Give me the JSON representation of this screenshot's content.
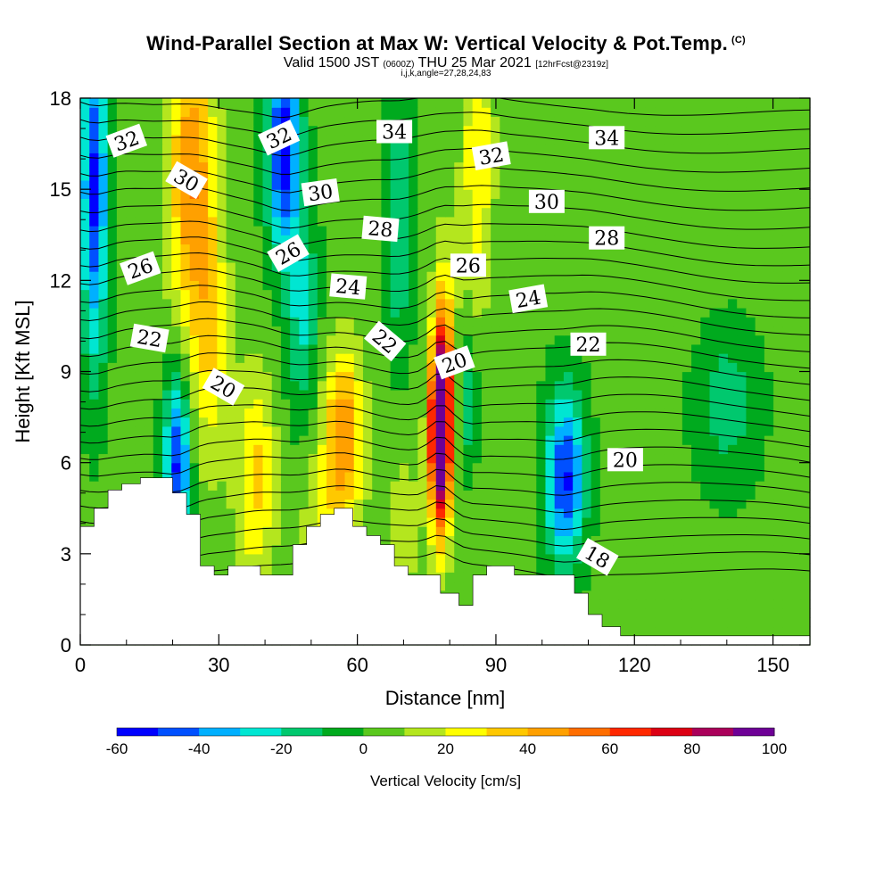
{
  "header": {
    "title": "Wind-Parallel Section at Max W: Vertical Velocity & Pot.Temp.",
    "title_mark": "(C)",
    "subtitle_a": "Valid 1500 JST",
    "subtitle_b": "(0600Z)",
    "subtitle_c": "THU 25 Mar 2021",
    "subtitle_d": "[12hrFcst@2319z]",
    "subtitle_line3": "i,j,k,angle=27,28,24,83"
  },
  "chart_data": {
    "type": "heatmap",
    "xlabel": "Distance [nm]",
    "ylabel": "Height [Kft MSL]",
    "xlim": [
      0,
      158
    ],
    "ylim": [
      0,
      18
    ],
    "x_ticks": [
      "0",
      "30",
      "60",
      "90",
      "120",
      "150"
    ],
    "y_ticks": [
      "0",
      "3",
      "6",
      "9",
      "12",
      "15",
      "18"
    ],
    "colorbar": {
      "title": "Vertical Velocity [cm/s]",
      "levels": [
        -60,
        -50,
        -40,
        -30,
        -20,
        -10,
        0,
        10,
        20,
        30,
        40,
        50,
        60,
        70,
        80,
        90,
        100
      ],
      "tick_labels": [
        "-60",
        "-40",
        "-20",
        "0",
        "20",
        "40",
        "60",
        "80",
        "100"
      ],
      "colors": [
        "#0000ff",
        "#0050ff",
        "#00b0ff",
        "#00e6d2",
        "#00c86e",
        "#00aa1e",
        "#5ac81e",
        "#b4e61e",
        "#ffff00",
        "#ffc800",
        "#ffa000",
        "#ff6e00",
        "#ff2800",
        "#dc0014",
        "#aa005a",
        "#6e0096"
      ]
    },
    "theta_labels": [
      {
        "text": "32",
        "x": 10,
        "y": 16.6,
        "rot": 20
      },
      {
        "text": "30",
        "x": 23,
        "y": 15.3,
        "rot": -30
      },
      {
        "text": "26",
        "x": 13,
        "y": 12.4,
        "rot": 20
      },
      {
        "text": "22",
        "x": 15,
        "y": 10.1,
        "rot": -10
      },
      {
        "text": "20",
        "x": 31,
        "y": 8.5,
        "rot": -30
      },
      {
        "text": "32",
        "x": 43,
        "y": 16.7,
        "rot": 25
      },
      {
        "text": "30",
        "x": 52,
        "y": 14.9,
        "rot": 8
      },
      {
        "text": "26",
        "x": 45,
        "y": 12.9,
        "rot": 30
      },
      {
        "text": "24",
        "x": 58,
        "y": 11.8,
        "rot": -5
      },
      {
        "text": "28",
        "x": 65,
        "y": 13.7,
        "rot": -5
      },
      {
        "text": "22",
        "x": 66,
        "y": 10.0,
        "rot": -40
      },
      {
        "text": "34",
        "x": 68,
        "y": 16.9,
        "rot": 0
      },
      {
        "text": "20",
        "x": 81,
        "y": 9.3,
        "rot": 20
      },
      {
        "text": "26",
        "x": 84,
        "y": 12.5,
        "rot": 0
      },
      {
        "text": "32",
        "x": 89,
        "y": 16.1,
        "rot": 10
      },
      {
        "text": "24",
        "x": 97,
        "y": 11.4,
        "rot": 10
      },
      {
        "text": "30",
        "x": 101,
        "y": 14.6,
        "rot": 0
      },
      {
        "text": "34",
        "x": 114,
        "y": 16.7,
        "rot": 0
      },
      {
        "text": "28",
        "x": 114,
        "y": 13.4,
        "rot": 0
      },
      {
        "text": "22",
        "x": 110,
        "y": 9.9,
        "rot": 0
      },
      {
        "text": "20",
        "x": 118,
        "y": 6.1,
        "rot": 0
      },
      {
        "text": "18",
        "x": 112,
        "y": 2.9,
        "rot": -30
      }
    ],
    "terrain": [
      [
        0,
        3.9
      ],
      [
        3,
        3.9
      ],
      [
        3,
        4.5
      ],
      [
        6,
        4.5
      ],
      [
        6,
        5.1
      ],
      [
        9,
        5.1
      ],
      [
        9,
        5.3
      ],
      [
        13,
        5.3
      ],
      [
        13,
        5.5
      ],
      [
        20,
        5.5
      ],
      [
        20,
        5.0
      ],
      [
        23,
        5.0
      ],
      [
        23,
        4.3
      ],
      [
        26,
        4.3
      ],
      [
        26,
        2.6
      ],
      [
        29,
        2.6
      ],
      [
        29,
        2.3
      ],
      [
        32,
        2.3
      ],
      [
        32,
        2.6
      ],
      [
        39,
        2.6
      ],
      [
        39,
        2.3
      ],
      [
        46,
        2.3
      ],
      [
        46,
        3.3
      ],
      [
        49,
        3.3
      ],
      [
        49,
        3.9
      ],
      [
        52,
        3.9
      ],
      [
        52,
        4.3
      ],
      [
        55,
        4.3
      ],
      [
        55,
        4.5
      ],
      [
        59,
        4.5
      ],
      [
        59,
        3.9
      ],
      [
        62,
        3.9
      ],
      [
        62,
        3.6
      ],
      [
        65,
        3.6
      ],
      [
        65,
        3.3
      ],
      [
        68,
        3.3
      ],
      [
        68,
        2.6
      ],
      [
        71,
        2.6
      ],
      [
        71,
        2.3
      ],
      [
        78,
        2.3
      ],
      [
        78,
        1.7
      ],
      [
        82,
        1.7
      ],
      [
        82,
        1.3
      ],
      [
        85,
        1.3
      ],
      [
        85,
        2.3
      ],
      [
        88,
        2.3
      ],
      [
        88,
        2.6
      ],
      [
        94,
        2.6
      ],
      [
        94,
        2.3
      ],
      [
        107,
        2.3
      ],
      [
        107,
        1.7
      ],
      [
        110,
        1.7
      ],
      [
        110,
        1.0
      ],
      [
        113,
        1.0
      ],
      [
        113,
        0.6
      ],
      [
        117,
        0.6
      ],
      [
        117,
        0.3
      ],
      [
        158,
        0.3
      ]
    ],
    "anomalies": [
      {
        "x": 78,
        "y": 7.0,
        "sx": 1.6,
        "sy": 2.2,
        "a": 130
      },
      {
        "x": 79,
        "y": 10.5,
        "sx": 1.6,
        "sy": 2.2,
        "a": 25
      },
      {
        "x": 24,
        "y": 15.5,
        "sx": 3.5,
        "sy": 3.5,
        "a": 45
      },
      {
        "x": 28,
        "y": 10.0,
        "sx": 3.0,
        "sy": 3.0,
        "a": 25
      },
      {
        "x": 38,
        "y": 5.5,
        "sx": 3.0,
        "sy": 2.5,
        "a": 30
      },
      {
        "x": 57,
        "y": 7.0,
        "sx": 3.0,
        "sy": 2.0,
        "a": 45
      },
      {
        "x": 53,
        "y": 4.0,
        "sx": 4.0,
        "sy": 1.8,
        "a": 15
      },
      {
        "x": 86,
        "y": 16.0,
        "sx": 2.5,
        "sy": 3.5,
        "a": 25
      },
      {
        "x": 70,
        "y": 4.0,
        "sx": 3.0,
        "sy": 2.0,
        "a": 12
      },
      {
        "x": 3,
        "y": 15.0,
        "sx": 2.0,
        "sy": 4.0,
        "a": -55
      },
      {
        "x": 21,
        "y": 6.0,
        "sx": 2.0,
        "sy": 2.0,
        "a": -55
      },
      {
        "x": 44,
        "y": 16.5,
        "sx": 2.5,
        "sy": 2.5,
        "a": -60
      },
      {
        "x": 48,
        "y": 11.0,
        "sx": 2.5,
        "sy": 2.5,
        "a": -25
      },
      {
        "x": 105,
        "y": 5.5,
        "sx": 3.0,
        "sy": 2.0,
        "a": -55
      },
      {
        "x": 69,
        "y": 14.0,
        "sx": 2.0,
        "sy": 3.0,
        "a": -25
      },
      {
        "x": 140,
        "y": 8.0,
        "sx": 5.0,
        "sy": 2.0,
        "a": -18
      },
      {
        "x": 84,
        "y": 8.0,
        "sx": 1.5,
        "sy": 1.5,
        "a": -20
      },
      {
        "x": 130,
        "y": 14.0,
        "sx": 10.0,
        "sy": 2.5,
        "a": 5
      }
    ],
    "background_w": 3
  },
  "colors": {
    "terrain_fill": "#ffffff",
    "contour_line": "#000000",
    "label_bg": "#ffffff"
  }
}
